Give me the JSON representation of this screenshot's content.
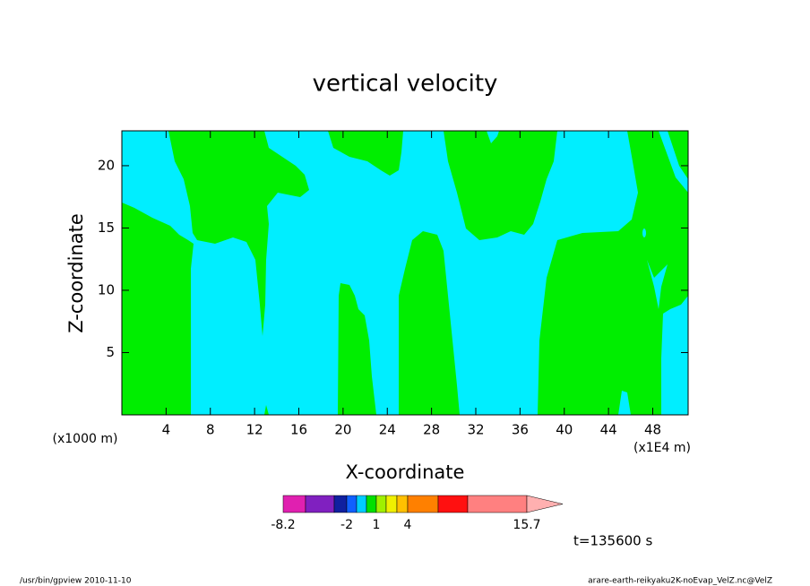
{
  "chart_data": {
    "type": "contour",
    "title": "vertical velocity",
    "xlabel": "X-coordinate",
    "ylabel": "Z-coordinate",
    "x_unit": "(x1000 m)",
    "x_unit_right": "(x1E4 m)",
    "time_label": "t=135600 s",
    "footer_left": "/usr/bin/gpview  2010-11-10",
    "footer_right": "arare-earth-reikyaku2K-noEvap_VelZ.nc@VelZ",
    "xlim": [
      0,
      51.2
    ],
    "xticks": [
      4,
      8,
      12,
      16,
      20,
      24,
      28,
      32,
      36,
      40,
      44,
      48
    ],
    "ylim": [
      0,
      22.8
    ],
    "yticks": [
      5,
      10,
      15,
      20
    ],
    "colorbar": {
      "colors": [
        "#e020b0",
        "#8020c0",
        "#1020a0",
        "#1060ff",
        "#00ccff",
        "#00e000",
        "#a0f000",
        "#f0f000",
        "#ffc000",
        "#ff8000",
        "#ff1010",
        "#ff8080",
        "#ffb0b0"
      ],
      "boundaries": [
        -8.2,
        null,
        null,
        -2,
        null,
        null,
        1,
        null,
        null,
        4,
        null,
        null,
        15.7
      ]
    }
  }
}
